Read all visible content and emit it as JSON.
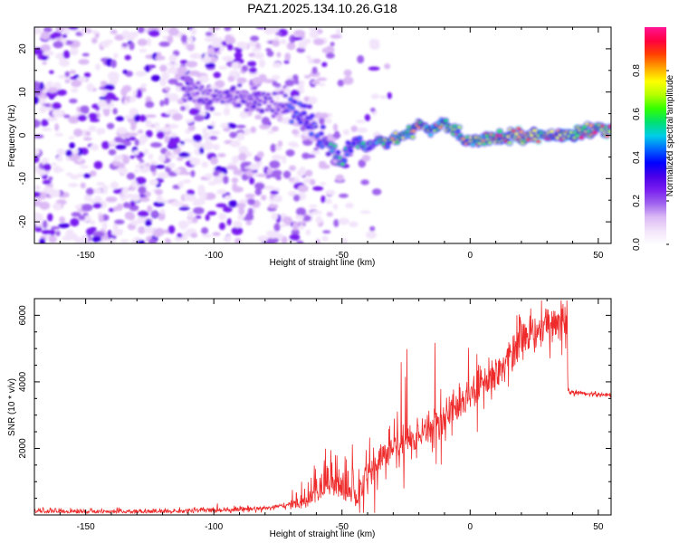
{
  "figure": {
    "title": "PAZ1.2025.134.10.26.G18"
  },
  "chart_data": [
    {
      "type": "heatmap",
      "xlabel": "Height of straight line (km)",
      "ylabel": "Frequency (Hz)",
      "xlim": [
        -170,
        55
      ],
      "ylim": [
        -25,
        25
      ],
      "xticks": [
        -150,
        -100,
        -50,
        0,
        50
      ],
      "yticks": [
        -20,
        -10,
        0,
        10,
        20
      ],
      "colorbar": {
        "label": "Normalized spectral amplitude",
        "range": [
          0.0,
          1.0
        ],
        "ticks": [
          0.0,
          0.2,
          0.4,
          0.6,
          0.8
        ],
        "colors": [
          "#ffffff",
          "#f2e4fb",
          "#dcbaf5",
          "#a064ee",
          "#7a1ff0",
          "#4a00e8",
          "#0000ff",
          "#0066ff",
          "#00cfe8",
          "#00e070",
          "#33ff00",
          "#b4ff00",
          "#ffff00",
          "#ffa500",
          "#ff4000",
          "#ff0040",
          "#ff1493"
        ]
      },
      "ridge": {
        "description_points_x": [
          -110,
          -100,
          -90,
          -80,
          -72,
          -65,
          -60,
          -55,
          -50,
          -45,
          -40,
          -35,
          -30,
          -25,
          -20,
          -15,
          -10,
          -5,
          0,
          10,
          20,
          30,
          40,
          50,
          55
        ],
        "description_points_y": [
          10,
          9,
          8.5,
          7.5,
          7.5,
          5,
          1,
          -3,
          -6,
          -1,
          -3,
          -1,
          -1,
          0,
          2,
          1,
          3,
          0,
          -1,
          -0.5,
          0,
          0,
          0.5,
          1,
          1
        ]
      }
    },
    {
      "type": "line",
      "xlabel": "Height of straight line (km)",
      "ylabel": "SNR (10 * v/v)",
      "xlim": [
        -170,
        55
      ],
      "ylim": [
        0,
        6500
      ],
      "xticks": [
        -150,
        -100,
        -50,
        0,
        50
      ],
      "yticks": [
        2000,
        4000,
        6000
      ],
      "line_color": "#ee2a2a",
      "envelope": {
        "x": [
          -170,
          -150,
          -120,
          -100,
          -80,
          -70,
          -62,
          -55,
          -50,
          -45,
          -40,
          -35,
          -30,
          -25,
          -20,
          -15,
          -10,
          -5,
          0,
          5,
          10,
          15,
          20,
          25,
          30,
          35,
          37.9,
          38.1,
          45,
          55
        ],
        "y": [
          120,
          100,
          100,
          150,
          200,
          300,
          400,
          800,
          600,
          400,
          1200,
          1700,
          2100,
          2200,
          2400,
          2700,
          2900,
          3300,
          3500,
          3900,
          4300,
          4800,
          5200,
          5500,
          5700,
          5800,
          5800,
          3700,
          3650,
          3600
        ]
      }
    }
  ]
}
